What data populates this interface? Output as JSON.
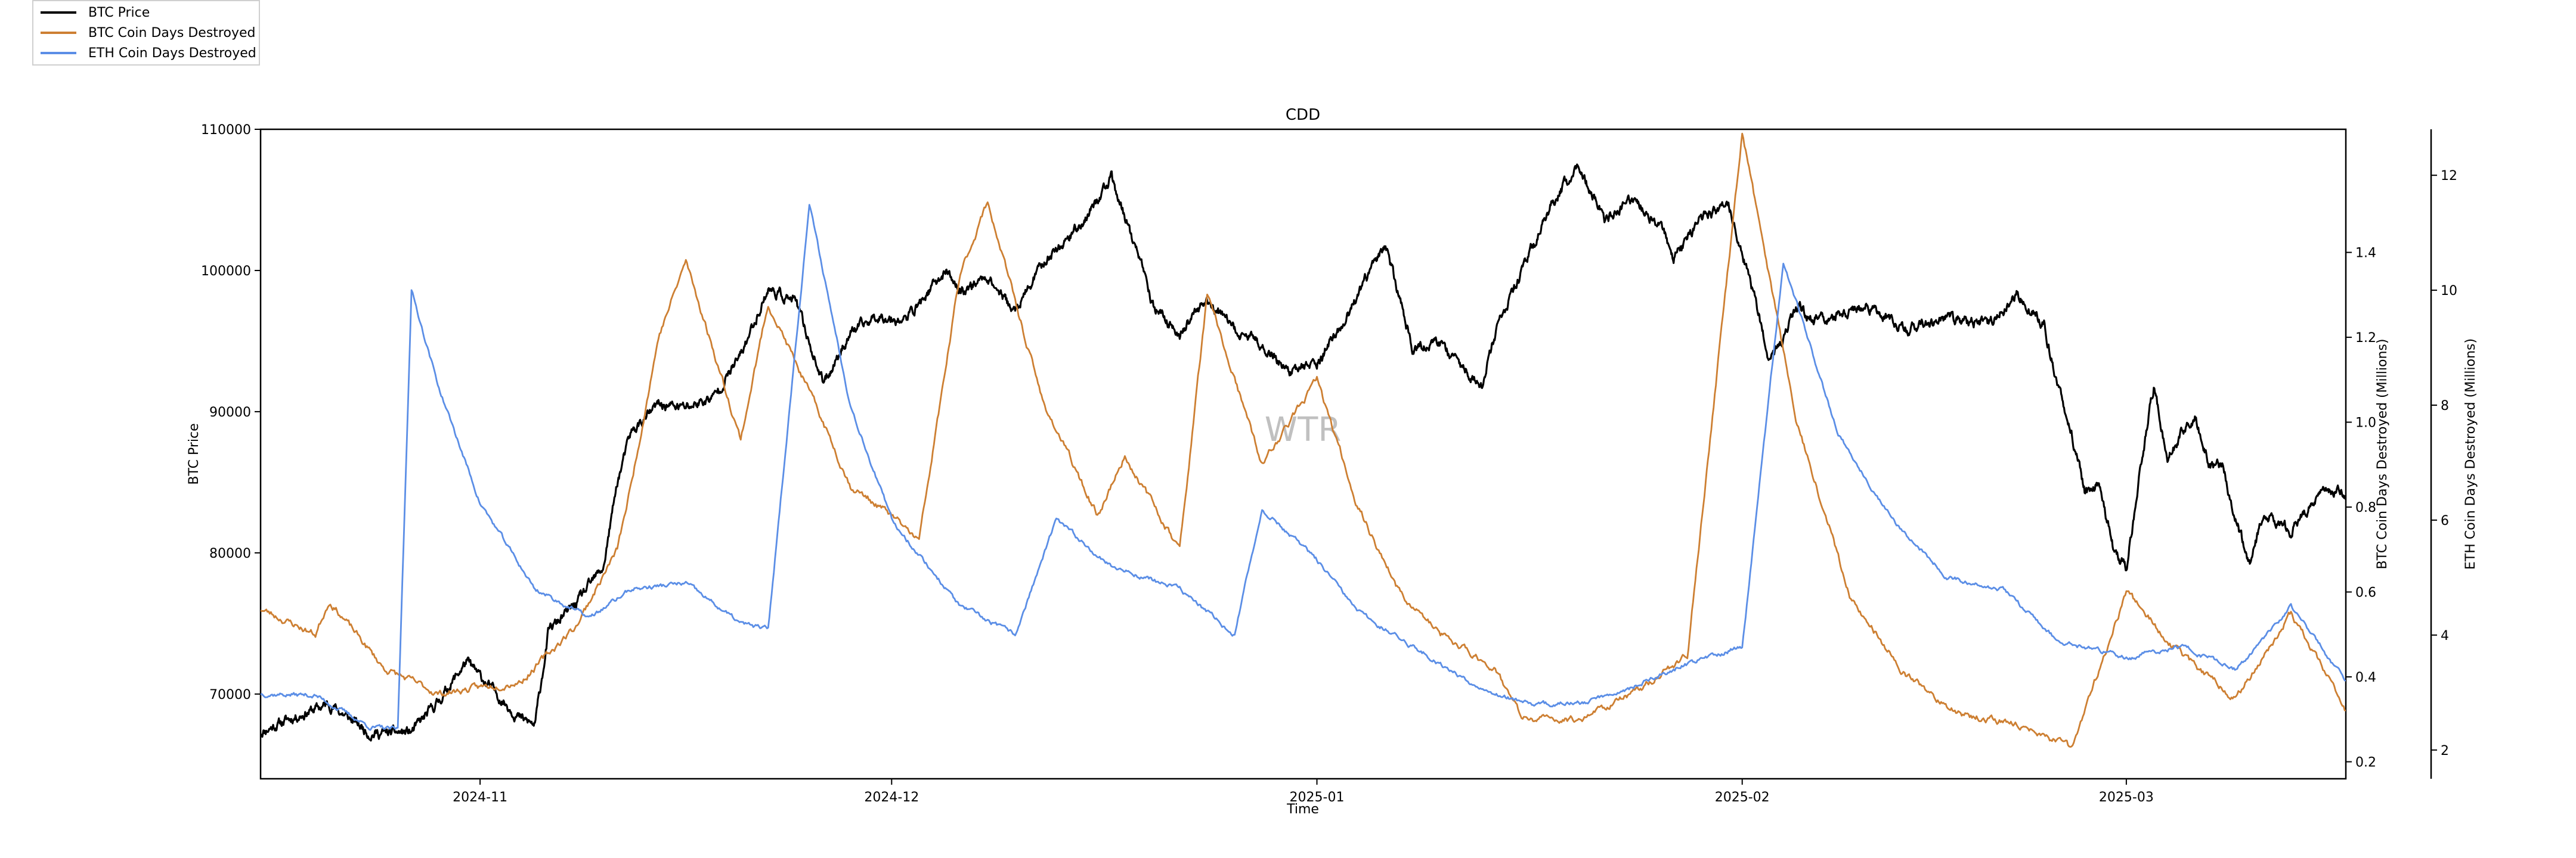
{
  "chart_data": {
    "type": "line",
    "title": "CDD",
    "xlabel": "Time",
    "watermark": "WTR",
    "x_range": [
      "2024-10-16",
      "2025-03-17"
    ],
    "x_ticks": [
      "2024-11",
      "2024-12",
      "2025-01",
      "2025-02",
      "2025-03"
    ],
    "x_tick_dates": [
      "2024-11-01",
      "2024-12-01",
      "2025-01-01",
      "2025-02-01",
      "2025-03-01"
    ],
    "axes": {
      "left": {
        "label": "BTC Price",
        "ylim": [
          64000,
          110000
        ],
        "ticks": [
          70000,
          80000,
          90000,
          100000,
          110000
        ]
      },
      "right1": {
        "label": "BTC Coin Days Destroyed (Millions)",
        "ylim": [
          0.16,
          1.69
        ],
        "ticks": [
          0.2,
          0.4,
          0.6,
          0.8,
          1.0,
          1.2,
          1.4
        ]
      },
      "right2": {
        "label": "ETH Coin Days Destroyed (Millions)",
        "ylim": [
          1.5,
          12.8
        ],
        "ticks": [
          2,
          4,
          6,
          8,
          10,
          12
        ]
      }
    },
    "legend_position": "top-left",
    "series": [
      {
        "name": "BTC Price",
        "axis": "left",
        "color": "#000000",
        "points": [
          [
            "2024-10-16",
            67300
          ],
          [
            "2024-10-18",
            68200
          ],
          [
            "2024-10-21",
            69300
          ],
          [
            "2024-10-24",
            67200
          ],
          [
            "2024-10-27",
            67300
          ],
          [
            "2024-10-29",
            69500
          ],
          [
            "2024-10-31",
            72300
          ],
          [
            "2024-11-02",
            70200
          ],
          [
            "2024-11-04",
            68200
          ],
          [
            "2024-11-05",
            67800
          ],
          [
            "2024-11-06",
            74500
          ],
          [
            "2024-11-08",
            76400
          ],
          [
            "2024-11-10",
            79000
          ],
          [
            "2024-11-11",
            85000
          ],
          [
            "2024-11-12",
            88500
          ],
          [
            "2024-11-14",
            90500
          ],
          [
            "2024-11-16",
            90300
          ],
          [
            "2024-11-18",
            91000
          ],
          [
            "2024-11-20",
            94000
          ],
          [
            "2024-11-22",
            98700
          ],
          [
            "2024-11-24",
            97800
          ],
          [
            "2024-11-26",
            92000
          ],
          [
            "2024-11-28",
            95600
          ],
          [
            "2024-11-30",
            96800
          ],
          [
            "2024-12-02",
            96500
          ],
          [
            "2024-12-05",
            100000
          ],
          [
            "2024-12-06",
            98500
          ],
          [
            "2024-12-08",
            99600
          ],
          [
            "2024-12-10",
            97000
          ],
          [
            "2024-12-12",
            100500
          ],
          [
            "2024-12-15",
            103500
          ],
          [
            "2024-12-17",
            106500
          ],
          [
            "2024-12-18",
            103800
          ],
          [
            "2024-12-19",
            101000
          ],
          [
            "2024-12-20",
            97500
          ],
          [
            "2024-12-22",
            95500
          ],
          [
            "2024-12-24",
            98000
          ],
          [
            "2024-12-26",
            95700
          ],
          [
            "2024-12-28",
            94800
          ],
          [
            "2024-12-30",
            92800
          ],
          [
            "2025-01-01",
            93500
          ],
          [
            "2025-01-03",
            96300
          ],
          [
            "2025-01-06",
            102000
          ],
          [
            "2025-01-07",
            98000
          ],
          [
            "2025-01-08",
            94500
          ],
          [
            "2025-01-10",
            94800
          ],
          [
            "2025-01-13",
            91800
          ],
          [
            "2025-01-14",
            95500
          ],
          [
            "2025-01-16",
            100000
          ],
          [
            "2025-01-18",
            104500
          ],
          [
            "2025-01-20",
            107500
          ],
          [
            "2025-01-22",
            103500
          ],
          [
            "2025-01-24",
            105000
          ],
          [
            "2025-01-26",
            103200
          ],
          [
            "2025-01-27",
            100800
          ],
          [
            "2025-01-29",
            103800
          ],
          [
            "2025-01-31",
            104600
          ],
          [
            "2025-02-02",
            97800
          ],
          [
            "2025-02-03",
            93500
          ],
          [
            "2025-02-05",
            97200
          ],
          [
            "2025-02-07",
            96500
          ],
          [
            "2025-02-10",
            97500
          ],
          [
            "2025-02-13",
            95800
          ],
          [
            "2025-02-16",
            96600
          ],
          [
            "2025-02-19",
            96200
          ],
          [
            "2025-02-21",
            98300
          ],
          [
            "2025-02-23",
            96200
          ],
          [
            "2025-02-24",
            91800
          ],
          [
            "2025-02-25",
            88500
          ],
          [
            "2025-02-26",
            84200
          ],
          [
            "2025-02-27",
            84800
          ],
          [
            "2025-02-28",
            80500
          ],
          [
            "2025-03-01",
            78800
          ],
          [
            "2025-03-02",
            86000
          ],
          [
            "2025-03-03",
            91800
          ],
          [
            "2025-03-04",
            86500
          ],
          [
            "2025-03-05",
            88500
          ],
          [
            "2025-03-06",
            89500
          ],
          [
            "2025-03-07",
            86300
          ],
          [
            "2025-03-08",
            86100
          ],
          [
            "2025-03-09",
            82400
          ],
          [
            "2025-03-10",
            79000
          ],
          [
            "2025-03-11",
            82800
          ],
          [
            "2025-03-13",
            81500
          ],
          [
            "2025-03-15",
            84300
          ],
          [
            "2025-03-17",
            84200
          ]
        ]
      },
      {
        "name": "BTC Coin Days Destroyed",
        "axis": "right1",
        "color": "#cd7f32",
        "points": [
          [
            "2024-10-16",
            0.56
          ],
          [
            "2024-10-20",
            0.5
          ],
          [
            "2024-10-21",
            0.58
          ],
          [
            "2024-10-25",
            0.42
          ],
          [
            "2024-10-29",
            0.36
          ],
          [
            "2024-11-04",
            0.39
          ],
          [
            "2024-11-08",
            0.52
          ],
          [
            "2024-11-11",
            0.7
          ],
          [
            "2024-11-12",
            0.85
          ],
          [
            "2024-11-14",
            1.2
          ],
          [
            "2024-11-16",
            1.38
          ],
          [
            "2024-11-20",
            0.96
          ],
          [
            "2024-11-22",
            1.28
          ],
          [
            "2024-11-26",
            1.0
          ],
          [
            "2024-11-28",
            0.85
          ],
          [
            "2024-12-01",
            0.78
          ],
          [
            "2024-12-03",
            0.72
          ],
          [
            "2024-12-06",
            1.35
          ],
          [
            "2024-12-08",
            1.52
          ],
          [
            "2024-12-12",
            1.05
          ],
          [
            "2024-12-16",
            0.78
          ],
          [
            "2024-12-18",
            0.92
          ],
          [
            "2024-12-22",
            0.7
          ],
          [
            "2024-12-24",
            1.3
          ],
          [
            "2024-12-28",
            0.9
          ],
          [
            "2025-01-01",
            1.1
          ],
          [
            "2025-01-04",
            0.8
          ],
          [
            "2025-01-07",
            0.6
          ],
          [
            "2025-01-10",
            0.5
          ],
          [
            "2025-01-14",
            0.42
          ],
          [
            "2025-01-16",
            0.3
          ],
          [
            "2025-01-20",
            0.3
          ],
          [
            "2025-01-24",
            0.36
          ],
          [
            "2025-01-28",
            0.45
          ],
          [
            "2025-02-01",
            1.68
          ],
          [
            "2025-02-05",
            1.0
          ],
          [
            "2025-02-09",
            0.58
          ],
          [
            "2025-02-13",
            0.4
          ],
          [
            "2025-02-17",
            0.31
          ],
          [
            "2025-02-21",
            0.29
          ],
          [
            "2025-02-25",
            0.23
          ],
          [
            "2025-03-01",
            0.6
          ],
          [
            "2025-03-05",
            0.45
          ],
          [
            "2025-03-09",
            0.35
          ],
          [
            "2025-03-13",
            0.55
          ],
          [
            "2025-03-17",
            0.32
          ]
        ]
      },
      {
        "name": "ETH Coin Days Destroyed",
        "axis": "right2",
        "color": "#5b8ee6",
        "points": [
          [
            "2024-10-16",
            2.98
          ],
          [
            "2024-10-20",
            2.95
          ],
          [
            "2024-10-24",
            2.4
          ],
          [
            "2024-10-26",
            2.35
          ],
          [
            "2024-10-27",
            10.0
          ],
          [
            "2024-10-29",
            8.3
          ],
          [
            "2024-11-01",
            6.3
          ],
          [
            "2024-11-05",
            4.8
          ],
          [
            "2024-11-09",
            4.3
          ],
          [
            "2024-11-12",
            4.8
          ],
          [
            "2024-11-16",
            4.9
          ],
          [
            "2024-11-20",
            4.2
          ],
          [
            "2024-11-22",
            4.1
          ],
          [
            "2024-11-25",
            11.5
          ],
          [
            "2024-11-28",
            8.0
          ],
          [
            "2024-12-01",
            6.0
          ],
          [
            "2024-12-06",
            4.5
          ],
          [
            "2024-12-10",
            4.0
          ],
          [
            "2024-12-13",
            6.0
          ],
          [
            "2024-12-17",
            5.2
          ],
          [
            "2024-12-22",
            4.8
          ],
          [
            "2024-12-26",
            4.0
          ],
          [
            "2024-12-28",
            6.2
          ],
          [
            "2025-01-01",
            5.3
          ],
          [
            "2025-01-04",
            4.4
          ],
          [
            "2025-01-08",
            3.8
          ],
          [
            "2025-01-12",
            3.2
          ],
          [
            "2025-01-16",
            2.8
          ],
          [
            "2025-01-20",
            2.8
          ],
          [
            "2025-01-24",
            3.1
          ],
          [
            "2025-01-28",
            3.5
          ],
          [
            "2025-02-01",
            3.8
          ],
          [
            "2025-02-04",
            10.5
          ],
          [
            "2025-02-08",
            7.5
          ],
          [
            "2025-02-12",
            6.0
          ],
          [
            "2025-02-16",
            5.0
          ],
          [
            "2025-02-20",
            4.8
          ],
          [
            "2025-02-24",
            3.9
          ],
          [
            "2025-03-01",
            3.6
          ],
          [
            "2025-03-05",
            3.8
          ],
          [
            "2025-03-09",
            3.4
          ],
          [
            "2025-03-13",
            4.5
          ],
          [
            "2025-03-17",
            3.2
          ]
        ]
      }
    ]
  }
}
